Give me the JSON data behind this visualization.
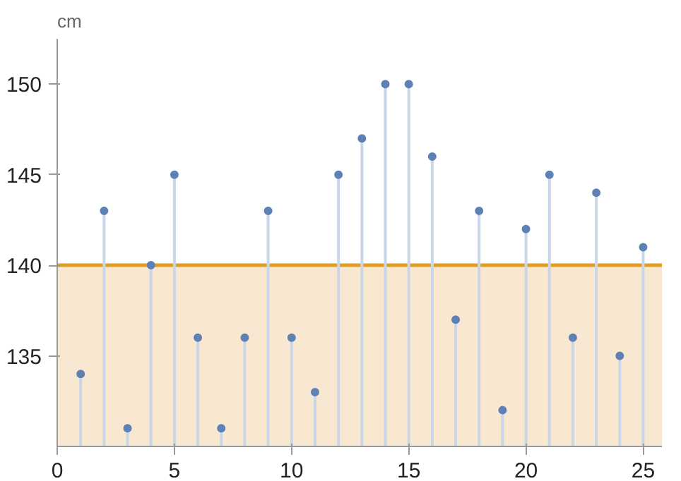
{
  "chart_data": {
    "type": "lollipop",
    "ylabel": "cm",
    "x": [
      1,
      2,
      3,
      4,
      5,
      6,
      7,
      8,
      9,
      10,
      11,
      12,
      13,
      14,
      15,
      16,
      17,
      18,
      19,
      20,
      21,
      22,
      23,
      24,
      25
    ],
    "series": [
      {
        "color": "#5e81b5",
        "values": [
          134,
          143,
          131,
          140,
          145,
          136,
          131,
          136,
          143,
          136,
          133,
          145,
          147,
          150,
          150,
          146,
          137,
          143,
          132,
          142,
          145,
          136,
          144,
          135,
          141
        ]
      }
    ],
    "xlim": [
      0,
      25.8
    ],
    "ylim": [
      130,
      152.5
    ],
    "xticks": [
      0,
      5,
      10,
      15,
      20,
      25
    ],
    "yticks": [
      135,
      140,
      145,
      150
    ],
    "ref_lines": [
      {
        "axis": "y",
        "value": 140,
        "color": "#e19c24"
      }
    ],
    "bands": [
      {
        "axis": "y",
        "from": 130,
        "to": 140,
        "color": "#f9e8d1"
      }
    ],
    "grid": false,
    "marker": "circle"
  }
}
